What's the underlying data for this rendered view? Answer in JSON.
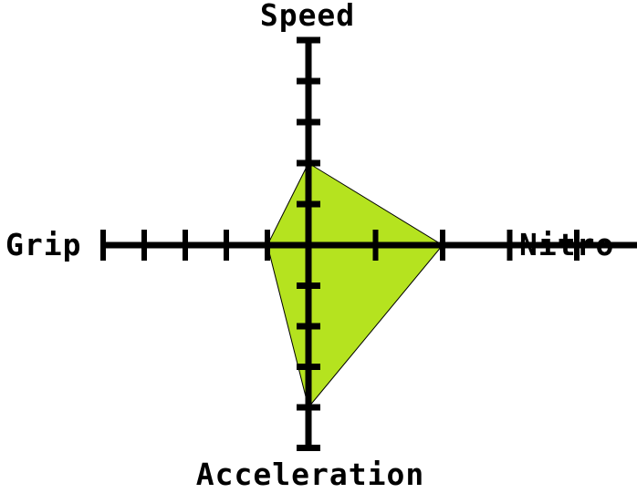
{
  "chart_data": {
    "type": "radar",
    "title": "",
    "axes": [
      "Speed",
      "Nitro",
      "Acceleration",
      "Grip"
    ],
    "max": 5,
    "values": [
      2,
      2,
      4,
      1
    ],
    "fill_color": "#b5e31f",
    "stroke_color": "#000000",
    "axis_color": "#000000"
  }
}
